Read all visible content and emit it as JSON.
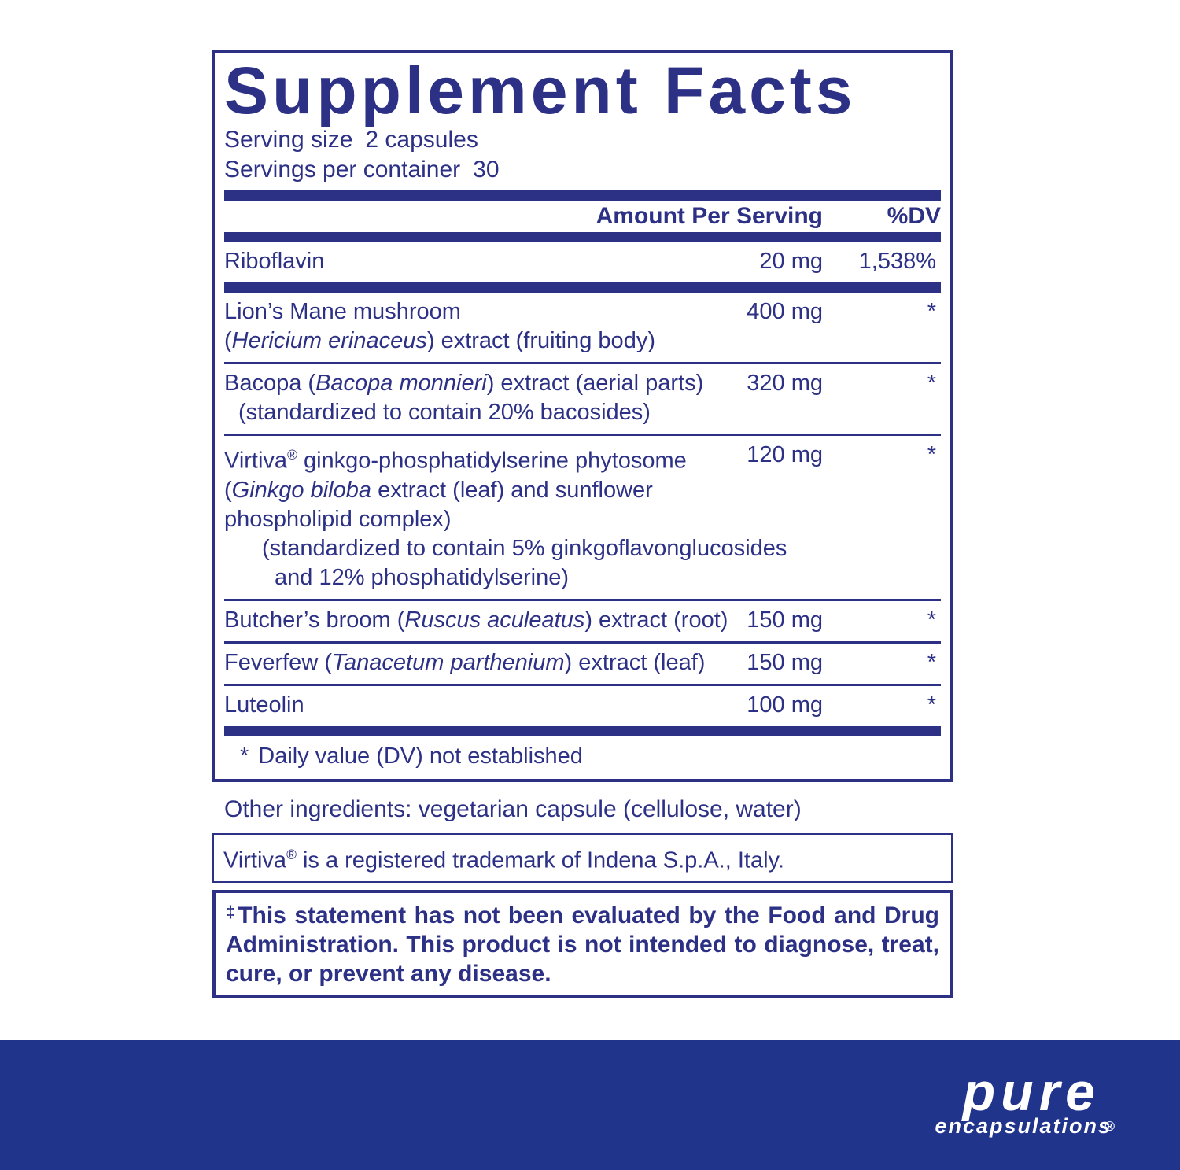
{
  "colors": {
    "ink": "#2d3186",
    "band": "#20348c",
    "paper": "#ffffff"
  },
  "panel": {
    "title": "Supplement Facts",
    "serving_size_label": "Serving size",
    "serving_size_value": "2 capsules",
    "servings_label": "Servings per container",
    "servings_value": "30",
    "col_amount": "Amount Per Serving",
    "col_dv": "%DV",
    "rows": [
      {
        "lines": [
          {
            "indent": 0,
            "parts": [
              {
                "t": "Riboflavin"
              }
            ]
          }
        ],
        "amount": "20 mg",
        "dv": "1,538%",
        "sep_after": "thick"
      },
      {
        "lines": [
          {
            "indent": 0,
            "parts": [
              {
                "t": "Lion’s Mane mushroom"
              }
            ]
          },
          {
            "indent": 0,
            "parts": [
              {
                "t": "("
              },
              {
                "t": "Hericium erinaceus",
                "i": true
              },
              {
                "t": ") extract (fruiting body)"
              }
            ]
          }
        ],
        "amount": "400 mg",
        "dv": "*",
        "sep_after": "thin"
      },
      {
        "lines": [
          {
            "indent": 0,
            "parts": [
              {
                "t": "Bacopa ("
              },
              {
                "t": "Bacopa monnieri",
                "i": true
              },
              {
                "t": ") extract (aerial parts)"
              }
            ]
          },
          {
            "indent": 18,
            "parts": [
              {
                "t": "(standardized to contain 20% bacosides)"
              }
            ]
          }
        ],
        "amount": "320 mg",
        "dv": "*",
        "sep_after": "thin"
      },
      {
        "lines": [
          {
            "indent": 0,
            "parts": [
              {
                "t": "Virtiva"
              },
              {
                "t": "®",
                "sup": true
              },
              {
                "t": " ginkgo-phosphatidylserine phytosome"
              }
            ]
          },
          {
            "indent": 0,
            "parts": [
              {
                "t": "("
              },
              {
                "t": "Ginkgo biloba",
                "i": true
              },
              {
                "t": " extract (leaf) and sunflower"
              }
            ]
          },
          {
            "indent": 0,
            "parts": [
              {
                "t": "phospholipid complex)"
              }
            ]
          },
          {
            "indent": 48,
            "parts": [
              {
                "t": "(standardized to contain 5% ginkgoflavonglucosides"
              }
            ]
          },
          {
            "indent": 64,
            "parts": [
              {
                "t": "and 12% phosphatidylserine)"
              }
            ]
          }
        ],
        "amount": "120 mg",
        "dv": "*",
        "sep_after": "thin"
      },
      {
        "lines": [
          {
            "indent": 0,
            "parts": [
              {
                "t": "Butcher’s broom ("
              },
              {
                "t": "Ruscus aculeatus",
                "i": true
              },
              {
                "t": ") extract (root)"
              }
            ]
          }
        ],
        "amount": "150 mg",
        "dv": "*",
        "sep_after": "thin"
      },
      {
        "lines": [
          {
            "indent": 0,
            "parts": [
              {
                "t": "Feverfew ("
              },
              {
                "t": "Tanacetum parthenium",
                "i": true
              },
              {
                "t": ") extract (leaf)"
              }
            ]
          }
        ],
        "amount": "150 mg",
        "dv": "*",
        "sep_after": "thin"
      },
      {
        "lines": [
          {
            "indent": 0,
            "parts": [
              {
                "t": "Luteolin"
              }
            ]
          }
        ],
        "amount": "100 mg",
        "dv": "*",
        "sep_after": "thick"
      }
    ],
    "footnote_star": "*",
    "footnote_text": "Daily value (DV) not established"
  },
  "other_ingredients": "Other ingredients: vegetarian capsule (cellulose, water)",
  "trademark": {
    "prefix": "Virtiva",
    "reg": "®",
    "suffix": " is a registered trademark of Indena S.p.A., Italy."
  },
  "fda": {
    "dagger": "‡",
    "text": "This statement has not been evaluated by the Food and Drug Administration. This product is not intended to diagnose, treat, cure, or prevent any disease."
  },
  "brand": {
    "name": "pure",
    "sub": "encapsulations",
    "reg": "®"
  }
}
